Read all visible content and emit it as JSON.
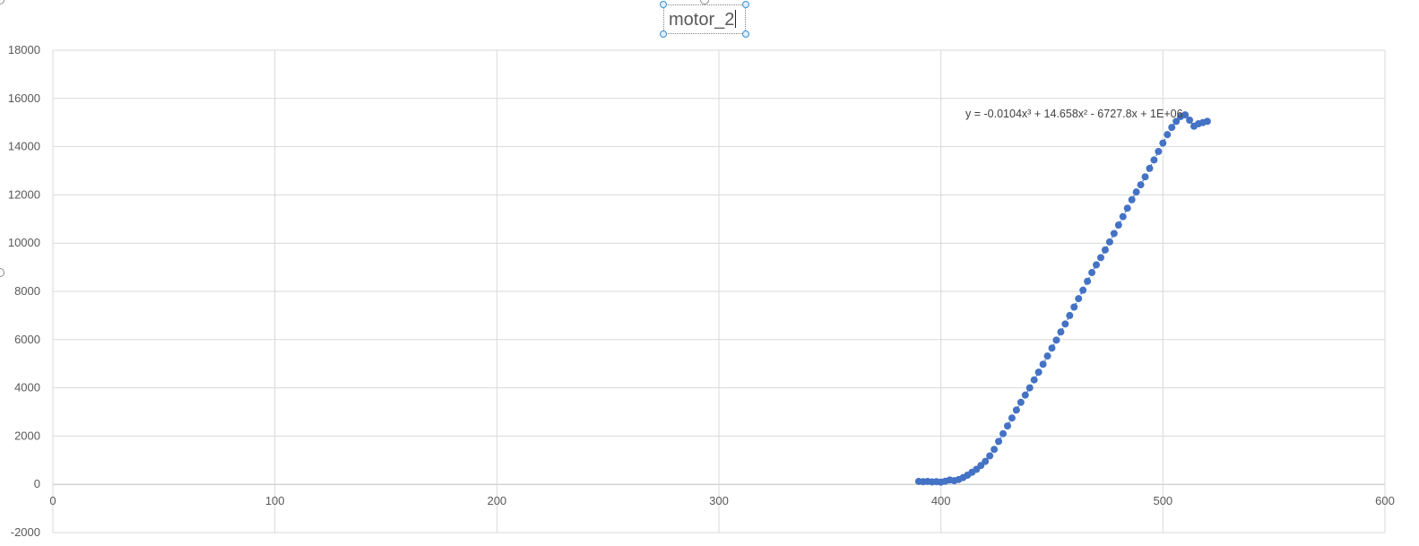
{
  "chart_data": {
    "type": "scatter",
    "title": "motor_2",
    "xlabel": "",
    "ylabel": "",
    "xlim": [
      0,
      600
    ],
    "ylim": [
      -2000,
      18000
    ],
    "x_ticks": [
      0,
      100,
      200,
      300,
      400,
      500,
      600
    ],
    "y_ticks": [
      -2000,
      0,
      2000,
      4000,
      6000,
      8000,
      10000,
      12000,
      14000,
      16000,
      18000
    ],
    "grid": true,
    "legend": "none",
    "series": [
      {
        "color": "#4472C4",
        "x": [
          390,
          392,
          394,
          396,
          398,
          400,
          402,
          404,
          406,
          408,
          410,
          412,
          414,
          416,
          418,
          420,
          422,
          424,
          426,
          428,
          430,
          432,
          434,
          436,
          438,
          440,
          442,
          444,
          446,
          448,
          450,
          452,
          454,
          456,
          458,
          460,
          462,
          464,
          466,
          468,
          470,
          472,
          474,
          476,
          478,
          480,
          482,
          484,
          486,
          488,
          490,
          492,
          494,
          496,
          498,
          500,
          502,
          504,
          506,
          508,
          510,
          512,
          514,
          516,
          518,
          520
        ],
        "y": [
          120,
          110,
          120,
          100,
          110,
          90,
          130,
          180,
          150,
          200,
          280,
          380,
          500,
          620,
          780,
          950,
          1180,
          1450,
          1780,
          2100,
          2420,
          2750,
          3080,
          3400,
          3700,
          4000,
          4330,
          4650,
          4980,
          5320,
          5650,
          5980,
          6320,
          6650,
          7000,
          7350,
          7700,
          8050,
          8420,
          8780,
          9100,
          9400,
          9720,
          10050,
          10400,
          10750,
          11100,
          11450,
          11800,
          12120,
          12420,
          12750,
          13100,
          13450,
          13800,
          14150,
          14500,
          14800,
          15050,
          15250,
          15320,
          15100,
          14850,
          14950,
          15000,
          15050
        ]
      }
    ],
    "trendline": {
      "type": "polynomial",
      "order": 3,
      "equation": "y = -0.0104x³ + 14.658x² - 6727.8x + 1E+06",
      "style": "dotted"
    }
  }
}
